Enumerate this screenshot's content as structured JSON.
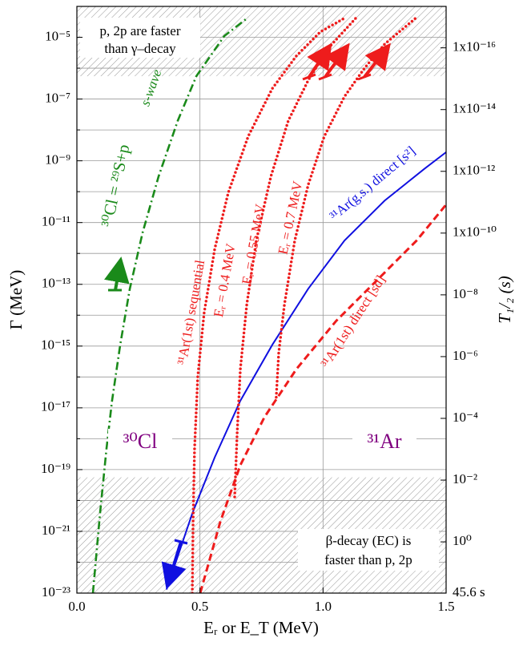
{
  "chart_data": {
    "type": "line",
    "y_scale": "log",
    "y2_scale": "log",
    "xlabel": "Eᵣ or E_T  (MeV)",
    "ylabel": "Γ  (MeV)",
    "y2label": "T₁/₂   (s)",
    "xlim": [
      0,
      1.5
    ],
    "xticks": [
      {
        "value": 0,
        "label": "0.0"
      },
      0.5,
      {
        "value": 1,
        "label": "1.0"
      },
      1.5
    ],
    "ylim": [
      1e-23,
      0.0001
    ],
    "yticks": [
      {
        "value": 1e-05,
        "label": "10⁻⁵"
      },
      {
        "value": 1e-07,
        "label": "10⁻⁷"
      },
      {
        "value": 1e-09,
        "label": "10⁻⁹"
      },
      {
        "value": 1e-11,
        "label": "10⁻¹¹"
      },
      {
        "value": 1e-13,
        "label": "10⁻¹³"
      },
      {
        "value": 1e-15,
        "label": "10⁻¹⁵"
      },
      {
        "value": 1e-17,
        "label": "10⁻¹⁷"
      },
      {
        "value": 1e-19,
        "label": "10⁻¹⁹"
      },
      {
        "value": 1e-21,
        "label": "10⁻²¹"
      },
      {
        "value": 1e-23,
        "label": "10⁻²³"
      }
    ],
    "yminorticks": [
      1e-22,
      1e-20,
      1e-18,
      1e-16,
      1e-14,
      1e-12,
      1e-10,
      1e-08,
      1e-06,
      0.0001
    ],
    "y2lim": [
      45.6,
      4.56e-18
    ],
    "y2ticks": [
      {
        "value": 1e-16,
        "label": "1x10⁻¹⁶"
      },
      {
        "value": 1e-14,
        "label": "1x10⁻¹⁴"
      },
      {
        "value": 1e-12,
        "label": "1x10⁻¹²"
      },
      {
        "value": 1e-10,
        "label": "1x10⁻¹⁰"
      },
      {
        "value": 1e-08,
        "label": "10⁻⁸"
      },
      {
        "value": 1e-06,
        "label": "10⁻⁶"
      },
      {
        "value": 0.0001,
        "label": "10⁻⁴"
      },
      {
        "value": 0.01,
        "label": "10⁻²"
      },
      {
        "value": 1,
        "label": "10⁰"
      },
      {
        "value": 45.6,
        "label": "45.6 s"
      }
    ],
    "grid": true,
    "shaded_regions": [
      {
        "ylim": [
          5.5e-07,
          0.0001
        ]
      },
      {
        "ylim": [
          1e-23,
          5.6e-20
        ]
      }
    ],
    "series": [
      {
        "name": "³⁰Cl = ²⁹S+p",
        "color": "#1a8a1a",
        "style": "dashdot",
        "x": [
          0.065,
          0.094,
          0.12,
          0.143,
          0.176,
          0.215,
          0.267,
          0.332,
          0.41,
          0.485,
          0.599,
          0.696
        ],
        "values": [
          1e-23,
          3.8e-21,
          4.6e-19,
          1.7e-17,
          1.1e-15,
          7.2e-14,
          4.8e-12,
          3.1e-10,
          2e-08,
          5.5e-07,
          1.1e-05,
          4.4e-05
        ]
      },
      {
        "name": "³¹Ar(g.s.)  direct [s²]",
        "color": "#1010e0",
        "style": "solid",
        "x": [
          0.364,
          0.469,
          0.56,
          0.664,
          0.794,
          0.94,
          1.087,
          1.25,
          1.413,
          1.5
        ],
        "values": [
          1.3e-23,
          3.8e-21,
          2.5e-19,
          1.7e-17,
          1.1e-15,
          7.2e-14,
          2.6e-12,
          5.1e-11,
          5.6e-10,
          1.9e-09
        ]
      },
      {
        "name": "³¹Ar(1st) direct [sd]",
        "color": "#ee1c1c",
        "style": "dashed",
        "x": [
          0.501,
          0.583,
          0.664,
          0.762,
          0.892,
          1.054,
          1.217,
          1.38,
          1.5
        ],
        "values": [
          1e-23,
          2.1e-21,
          1.4e-19,
          5e-18,
          1.8e-16,
          6.6e-15,
          1.3e-13,
          2.6e-12,
          3.8e-11
        ]
      },
      {
        "name": "Eᵣ = 0.4 MeV",
        "color": "#ee1c1c",
        "style": "dotted",
        "x": [
          0.469,
          0.472,
          0.478,
          0.491,
          0.517,
          0.56,
          0.615,
          0.696,
          0.794,
          0.892,
          0.989,
          1.093
        ],
        "values": [
          1e-23,
          2.2e-21,
          4.6e-19,
          1e-16,
          1.2e-14,
          1.4e-12,
          9.3e-11,
          6.2e-09,
          2.2e-07,
          2.5e-06,
          1.5e-05,
          4.4e-05
        ]
      },
      {
        "name": "Eᵣ = 0.55 MeV",
        "color": "#ee1c1c",
        "style": "dotted",
        "x": [
          0.641,
          0.651,
          0.664,
          0.69,
          0.729,
          0.788,
          0.859,
          0.94,
          1.022,
          1.136
        ],
        "values": [
          1.3e-20,
          1.5e-18,
          1.8e-16,
          2.2e-14,
          2.6e-12,
          3.1e-10,
          2e-08,
          4.1e-07,
          4.5e-06,
          4.4e-05
        ]
      },
      {
        "name": "Eᵣ = 0.7 MeV",
        "color": "#ee1c1c",
        "style": "dotted",
        "x": [
          0.81,
          0.82,
          0.843,
          0.885,
          0.94,
          1.005,
          1.087,
          1.168,
          1.25,
          1.38
        ],
        "values": [
          2.2e-17,
          6e-16,
          2.2e-14,
          2.6e-12,
          1.7e-10,
          6.2e-09,
          1.2e-07,
          1e-06,
          6e-06,
          4.4e-05
        ]
      }
    ],
    "annotations": [
      "p, 2p are faster",
      "than γ–decay",
      "β-decay (EC) is",
      "faster than p, 2p",
      "s-wave",
      "³¹Ar(1st) sequential",
      "³⁰Cl",
      "³¹Ar"
    ]
  }
}
